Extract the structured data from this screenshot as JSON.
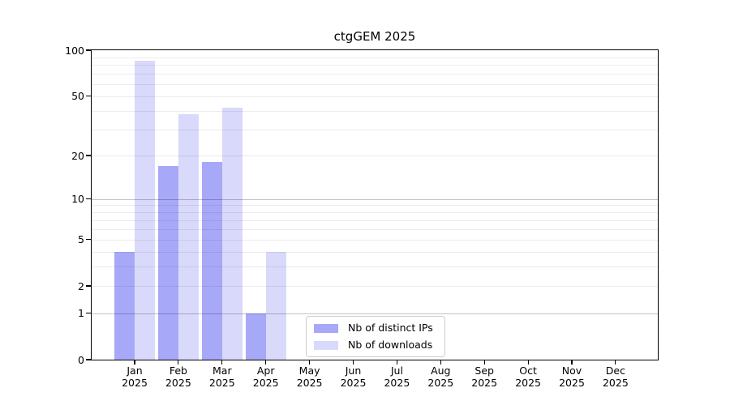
{
  "title": "ctgGEM 2025",
  "chart_data": {
    "type": "bar",
    "title": "ctgGEM 2025",
    "categories": [
      "Jan",
      "Feb",
      "Mar",
      "Apr",
      "May",
      "Jun",
      "Jul",
      "Aug",
      "Sep",
      "Oct",
      "Nov",
      "Dec"
    ],
    "category_year": "2025",
    "series": [
      {
        "key": "distinct-ips",
        "name": "Nb of distinct IPs",
        "color": "#a8a8f8",
        "values": [
          4,
          17,
          18,
          1,
          0,
          0,
          0,
          0,
          0,
          0,
          0,
          0
        ]
      },
      {
        "key": "downloads",
        "name": "Nb of downloads",
        "color": "#d9d9fb",
        "values": [
          85,
          38,
          42,
          4,
          0,
          0,
          0,
          0,
          0,
          0,
          0,
          0
        ]
      }
    ],
    "y_scale": "log1p",
    "ylim": [
      0,
      100
    ],
    "y_ticks": [
      {
        "value": 0,
        "label": "0"
      },
      {
        "value": 1,
        "label": "1"
      },
      {
        "value": 2,
        "label": "2"
      },
      {
        "value": 5,
        "label": "5"
      },
      {
        "value": 10,
        "label": "10"
      },
      {
        "value": 20,
        "label": "20"
      },
      {
        "value": 50,
        "label": "50"
      },
      {
        "value": 100,
        "label": "100"
      }
    ],
    "y_major_gridlines": [
      1,
      10,
      100
    ],
    "y_minor_gridlines": [
      2,
      3,
      4,
      5,
      6,
      7,
      8,
      9,
      20,
      30,
      40,
      50,
      60,
      70,
      80,
      90
    ],
    "xlabel": "",
    "ylabel": "",
    "grid": true,
    "legend_position": "lower center"
  }
}
